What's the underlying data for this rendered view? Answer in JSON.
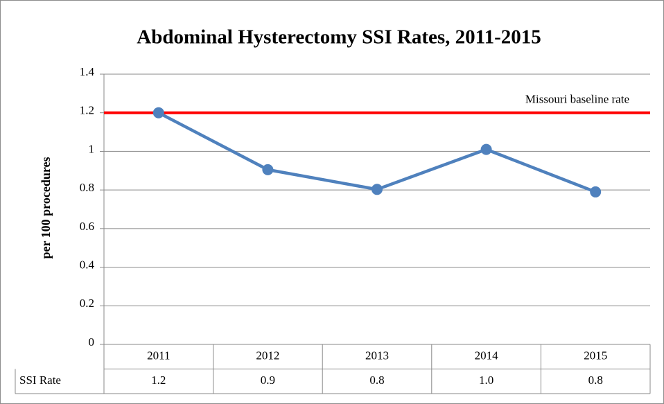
{
  "chart_data": {
    "type": "line",
    "title": "Abdominal Hysterectomy SSI Rates, 2011-2015",
    "y_label": "per 100 procedures",
    "categories": [
      "2011",
      "2012",
      "2013",
      "2014",
      "2015"
    ],
    "series": [
      {
        "name": "SSI Rate",
        "color": "#4f81bd",
        "values": [
          1.2,
          0.905,
          0.803,
          1.01,
          0.79
        ],
        "value_labels": [
          "1.2",
          "0.9",
          "0.8",
          "1.0",
          "0.8"
        ]
      }
    ],
    "baseline": {
      "label": "Missouri baseline rate",
      "value": 1.2,
      "color": "#ff0000"
    },
    "ylim": [
      0,
      1.4
    ],
    "yticks": [
      0,
      0.2,
      0.4,
      0.6,
      0.8,
      1,
      1.2,
      1.4
    ],
    "grid": true
  }
}
